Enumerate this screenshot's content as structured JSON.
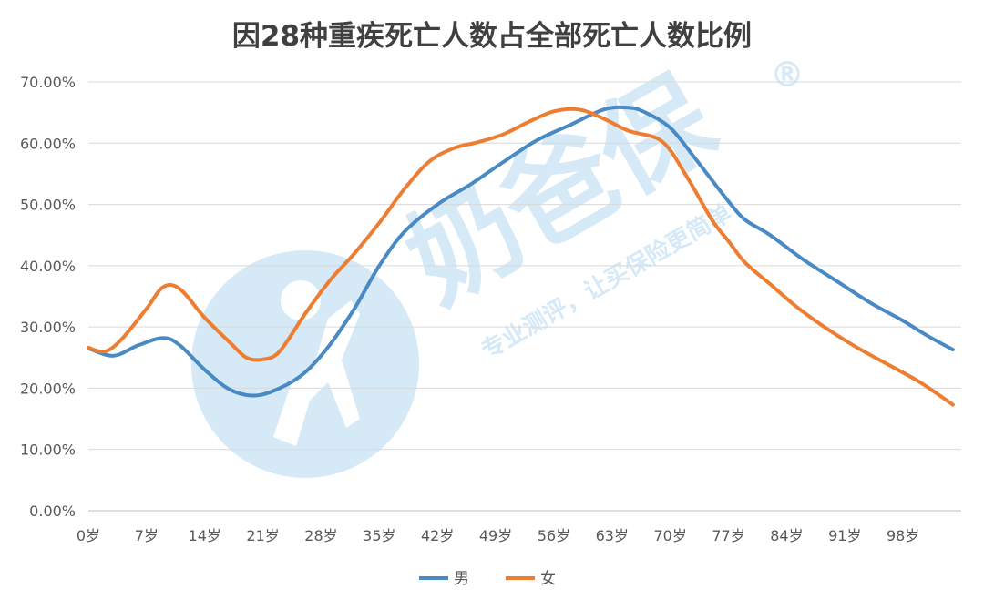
{
  "chart_data": {
    "type": "line",
    "title": "因28种重疾死亡人数占全部死亡人数比例",
    "xlabel": "",
    "ylabel": "",
    "ylim": [
      0,
      70
    ],
    "y_ticks": [
      "0.00%",
      "10.00%",
      "20.00%",
      "30.00%",
      "40.00%",
      "50.00%",
      "60.00%",
      "70.00%"
    ],
    "x_ticks": [
      "0岁",
      "7岁",
      "14岁",
      "21岁",
      "28岁",
      "35岁",
      "42岁",
      "49岁",
      "56岁",
      "63岁",
      "70岁",
      "77岁",
      "84岁",
      "91岁",
      "98岁"
    ],
    "x_range": [
      0,
      105
    ],
    "grid": "horizontal",
    "legend_position": "bottom",
    "series": [
      {
        "name": "男",
        "color": "#4a8ac4",
        "points": [
          [
            0,
            26.5
          ],
          [
            3,
            25.3
          ],
          [
            6,
            27
          ],
          [
            9,
            28.2
          ],
          [
            11,
            27
          ],
          [
            14,
            23
          ],
          [
            17,
            19.8
          ],
          [
            20,
            18.8
          ],
          [
            23,
            20
          ],
          [
            26,
            22.5
          ],
          [
            29,
            27
          ],
          [
            32,
            33
          ],
          [
            35,
            40
          ],
          [
            38,
            45.5
          ],
          [
            42,
            50
          ],
          [
            46,
            53.3
          ],
          [
            50,
            57
          ],
          [
            54,
            60.5
          ],
          [
            58,
            63
          ],
          [
            62,
            65.5
          ],
          [
            65,
            65.8
          ],
          [
            67,
            65
          ],
          [
            70,
            62.5
          ],
          [
            73,
            57.5
          ],
          [
            77,
            50.5
          ],
          [
            79,
            47.5
          ],
          [
            82,
            45
          ],
          [
            86,
            41
          ],
          [
            90,
            37.5
          ],
          [
            94,
            34
          ],
          [
            98,
            31
          ],
          [
            101,
            28.5
          ],
          [
            104,
            26.3
          ]
        ]
      },
      {
        "name": "女",
        "color": "#ed7d31",
        "points": [
          [
            0,
            26.6
          ],
          [
            2,
            26
          ],
          [
            4,
            28
          ],
          [
            7,
            33
          ],
          [
            9,
            36.5
          ],
          [
            11,
            36.2
          ],
          [
            14,
            31.5
          ],
          [
            17,
            27.5
          ],
          [
            19,
            25
          ],
          [
            21,
            24.7
          ],
          [
            23,
            26
          ],
          [
            26,
            32
          ],
          [
            29,
            37.5
          ],
          [
            32,
            42
          ],
          [
            35,
            47
          ],
          [
            38,
            52.5
          ],
          [
            41,
            57
          ],
          [
            44,
            59.2
          ],
          [
            47,
            60.2
          ],
          [
            50,
            61.5
          ],
          [
            53,
            63.5
          ],
          [
            56,
            65.2
          ],
          [
            59,
            65.5
          ],
          [
            62,
            64
          ],
          [
            65,
            62
          ],
          [
            69,
            60.3
          ],
          [
            72,
            54.5
          ],
          [
            75,
            47.5
          ],
          [
            77,
            44
          ],
          [
            79,
            40.5
          ],
          [
            82,
            37
          ],
          [
            85,
            33.5
          ],
          [
            88,
            30.5
          ],
          [
            92,
            27
          ],
          [
            96,
            24
          ],
          [
            100,
            21
          ],
          [
            104,
            17.3
          ]
        ]
      }
    ]
  },
  "watermark": {
    "brand": "奶爸保",
    "slogan": "专业测评，让买保险更简单",
    "registered": "®",
    "color": "#4aa3df"
  }
}
